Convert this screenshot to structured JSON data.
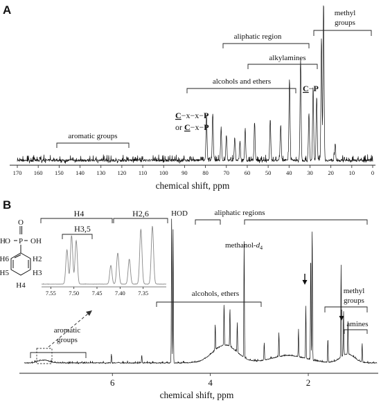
{
  "panels": {
    "a": {
      "letter": "A",
      "xlabel": "chemical shift, ppm"
    },
    "b": {
      "letter": "B",
      "xlabel": "chemical shift, ppm"
    }
  },
  "chart_data": [
    {
      "type": "line",
      "panel": "A",
      "xlabel": "chemical shift, ppm",
      "ylabel": "",
      "xlim": [
        170,
        0
      ],
      "x_reversed": true,
      "ticks": [
        170,
        160,
        150,
        140,
        130,
        120,
        110,
        100,
        90,
        80,
        70,
        60,
        50,
        40,
        30,
        20,
        10,
        0
      ],
      "peaks": [
        {
          "x": 23.5,
          "h": 1.0
        },
        {
          "x": 24.5,
          "h": 0.78
        },
        {
          "x": 28.5,
          "h": 0.46
        },
        {
          "x": 26.8,
          "h": 0.4
        },
        {
          "x": 34.5,
          "h": 0.64
        },
        {
          "x": 39.8,
          "h": 0.52
        },
        {
          "x": 30.5,
          "h": 0.3
        },
        {
          "x": 44.0,
          "h": 0.22
        },
        {
          "x": 49.0,
          "h": 0.26
        },
        {
          "x": 56.5,
          "h": 0.24
        },
        {
          "x": 61.0,
          "h": 0.2
        },
        {
          "x": 70.0,
          "h": 0.16
        },
        {
          "x": 72.5,
          "h": 0.2
        },
        {
          "x": 76.5,
          "h": 0.3
        },
        {
          "x": 79.5,
          "h": 0.28
        },
        {
          "x": 66.0,
          "h": 0.14
        },
        {
          "x": 63.5,
          "h": 0.12
        },
        {
          "x": 18.0,
          "h": 0.1
        }
      ],
      "annotations": [
        {
          "text": "methyl",
          "bracket": [
            30,
            0
          ]
        },
        {
          "text": "groups"
        },
        {
          "text": "aliphatic region",
          "bracket": [
            73,
            31
          ]
        },
        {
          "text": "alkylamines",
          "bracket": [
            60,
            25
          ]
        },
        {
          "text": "alcohols and ethers",
          "bracket": [
            89,
            37
          ]
        },
        {
          "text": "aromatic groups",
          "bracket": [
            151,
            117
          ]
        }
      ],
      "labels": {
        "cp_c": "C",
        "cp_p": "P",
        "cxxp_c": "C",
        "cxxp_mid": "−x−x−",
        "cxxp_p": "P",
        "cxp_or": "or ",
        "cxp_c": "C",
        "cxp_mid": "−x−",
        "cxp_p": "P"
      }
    },
    {
      "type": "line",
      "panel": "B",
      "xlabel": "chemical shift, ppm",
      "ylabel": "",
      "xlim": [
        7.8,
        0.6
      ],
      "x_reversed": true,
      "ticks": [
        6,
        4,
        2
      ],
      "peaks": [
        {
          "x": 4.79,
          "h": 1.0
        },
        {
          "x": 4.76,
          "h": 0.9
        },
        {
          "x": 3.31,
          "h": 0.78
        },
        {
          "x": 1.92,
          "h": 0.9
        },
        {
          "x": 1.95,
          "h": 0.72
        },
        {
          "x": 2.05,
          "h": 0.35
        },
        {
          "x": 1.33,
          "h": 0.62
        },
        {
          "x": 1.28,
          "h": 0.3
        },
        {
          "x": 1.19,
          "h": 0.22
        },
        {
          "x": 3.72,
          "h": 0.28
        },
        {
          "x": 3.6,
          "h": 0.26
        },
        {
          "x": 3.45,
          "h": 0.2
        },
        {
          "x": 3.9,
          "h": 0.18
        },
        {
          "x": 2.6,
          "h": 0.16
        },
        {
          "x": 2.2,
          "h": 0.18
        },
        {
          "x": 2.9,
          "h": 0.12
        },
        {
          "x": 1.6,
          "h": 0.16
        },
        {
          "x": 0.9,
          "h": 0.12
        },
        {
          "x": 6.02,
          "h": 0.06
        },
        {
          "x": 5.4,
          "h": 0.05
        }
      ],
      "annotations": [
        {
          "text": "HOD"
        },
        {
          "text": "aliphatic regions",
          "brackets": [
            [
              4.3,
              3.8
            ],
            [
              3.3,
              0.7
            ]
          ]
        },
        {
          "text": "methanol-",
          "sub": "4",
          "italic": "d"
        },
        {
          "text": "alcohols, ethers",
          "bracket": [
            5.1,
            3.0
          ]
        },
        {
          "text": "methyl",
          "bracket": [
            1.75,
            0.75
          ]
        },
        {
          "text": "groups"
        },
        {
          "text": "amines",
          "bracket": [
            1.4,
            0.75
          ]
        },
        {
          "text": "aromatic",
          "bracket": [
            7.6,
            6.6
          ]
        },
        {
          "text": "groups"
        }
      ],
      "inset": {
        "xlim": [
          7.57,
          7.3
        ],
        "ticks": [
          7.55,
          7.5,
          7.45,
          7.4,
          7.35
        ],
        "peaks": [
          {
            "x": 7.515,
            "h": 0.55
          },
          {
            "x": 7.505,
            "h": 0.78
          },
          {
            "x": 7.495,
            "h": 0.7
          },
          {
            "x": 7.42,
            "h": 0.3
          },
          {
            "x": 7.405,
            "h": 0.5
          },
          {
            "x": 7.38,
            "h": 0.4
          },
          {
            "x": 7.355,
            "h": 0.88
          },
          {
            "x": 7.33,
            "h": 0.93
          }
        ],
        "labels": {
          "h4": "H4",
          "h35": "H3,5",
          "h26": "H2,6"
        }
      },
      "molecule": {
        "atoms": {
          "p": "P",
          "o_top": "O",
          "o_left": "O",
          "o_right": "O",
          "h_left": "H",
          "h_right": "H",
          "h2": "H2",
          "h3": "H3",
          "h4": "H4",
          "h5": "H5",
          "h6": "H6"
        }
      }
    }
  ]
}
